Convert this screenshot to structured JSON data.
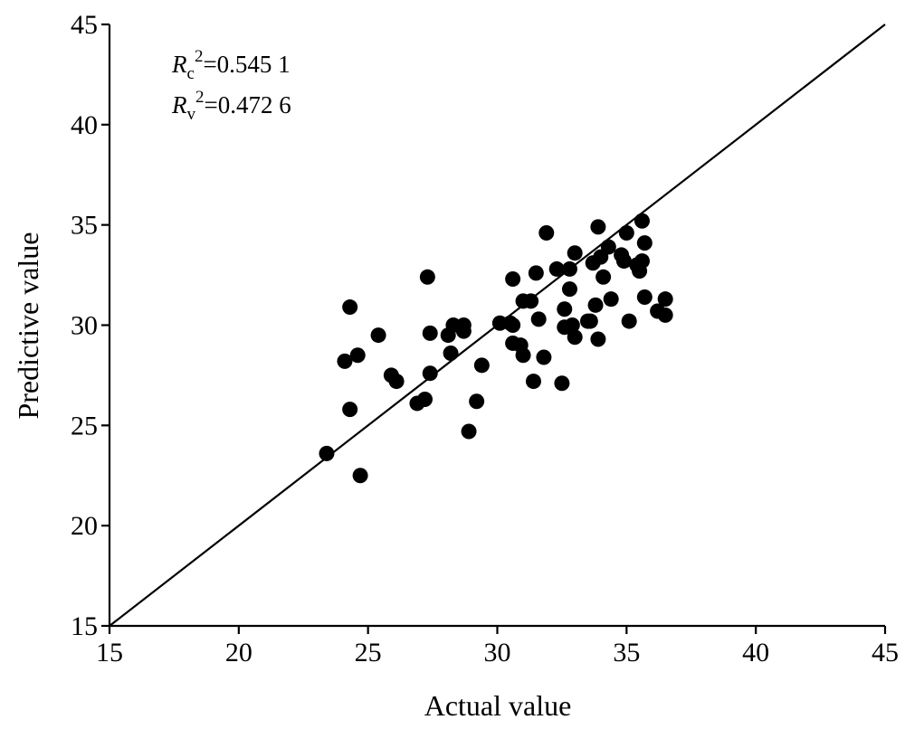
{
  "chart_data": {
    "type": "scatter",
    "xlabel": "Actual value",
    "ylabel": "Predictive value",
    "xlim": [
      15,
      45
    ],
    "ylim": [
      15,
      45
    ],
    "xticks": [
      "15",
      "20",
      "25",
      "30",
      "35",
      "40",
      "45"
    ],
    "yticks": [
      "15",
      "20",
      "25",
      "30",
      "35",
      "40",
      "45"
    ],
    "grid": false,
    "reference_line": {
      "type": "y=x",
      "from": [
        15,
        15
      ],
      "to": [
        45,
        45
      ]
    },
    "annotations": [
      {
        "symbol": "R",
        "subscript": "c",
        "superscript": "2",
        "text": "=0.545 1"
      },
      {
        "symbol": "R",
        "subscript": "v",
        "superscript": "2",
        "text": "=0.472 6"
      }
    ],
    "marker_color": "#000000",
    "points": [
      [
        23.4,
        23.6
      ],
      [
        24.1,
        28.2
      ],
      [
        24.3,
        25.8
      ],
      [
        24.3,
        30.9
      ],
      [
        24.6,
        28.5
      ],
      [
        24.7,
        22.5
      ],
      [
        25.4,
        29.5
      ],
      [
        25.9,
        27.5
      ],
      [
        26.1,
        27.2
      ],
      [
        26.9,
        26.1
      ],
      [
        27.2,
        26.3
      ],
      [
        27.3,
        32.4
      ],
      [
        27.4,
        29.6
      ],
      [
        27.4,
        27.6
      ],
      [
        28.1,
        29.5
      ],
      [
        28.2,
        28.6
      ],
      [
        28.3,
        30.0
      ],
      [
        28.7,
        29.7
      ],
      [
        28.7,
        30.0
      ],
      [
        28.9,
        24.7
      ],
      [
        29.2,
        26.2
      ],
      [
        29.4,
        28.0
      ],
      [
        30.1,
        30.1
      ],
      [
        30.5,
        30.1
      ],
      [
        30.6,
        29.1
      ],
      [
        30.6,
        30.0
      ],
      [
        30.6,
        32.3
      ],
      [
        30.9,
        29.0
      ],
      [
        31.0,
        31.2
      ],
      [
        31.0,
        28.5
      ],
      [
        31.3,
        31.2
      ],
      [
        31.4,
        27.2
      ],
      [
        31.5,
        32.6
      ],
      [
        31.6,
        30.3
      ],
      [
        31.8,
        28.4
      ],
      [
        31.9,
        34.6
      ],
      [
        32.3,
        32.8
      ],
      [
        32.5,
        27.1
      ],
      [
        32.6,
        29.9
      ],
      [
        32.6,
        30.8
      ],
      [
        32.8,
        32.8
      ],
      [
        32.8,
        31.8
      ],
      [
        32.9,
        30.0
      ],
      [
        33.0,
        33.6
      ],
      [
        33.0,
        29.4
      ],
      [
        33.5,
        30.2
      ],
      [
        33.6,
        30.2
      ],
      [
        33.7,
        33.1
      ],
      [
        33.8,
        31.0
      ],
      [
        33.9,
        34.9
      ],
      [
        33.9,
        29.3
      ],
      [
        34.0,
        33.4
      ],
      [
        34.1,
        32.4
      ],
      [
        34.3,
        33.9
      ],
      [
        34.4,
        31.3
      ],
      [
        34.8,
        33.5
      ],
      [
        34.9,
        33.2
      ],
      [
        35.0,
        34.6
      ],
      [
        35.1,
        30.2
      ],
      [
        35.4,
        33.0
      ],
      [
        35.5,
        32.7
      ],
      [
        35.6,
        35.2
      ],
      [
        35.6,
        33.2
      ],
      [
        35.7,
        31.4
      ],
      [
        35.7,
        34.1
      ],
      [
        36.2,
        30.7
      ],
      [
        36.5,
        30.5
      ],
      [
        36.5,
        31.3
      ]
    ]
  }
}
